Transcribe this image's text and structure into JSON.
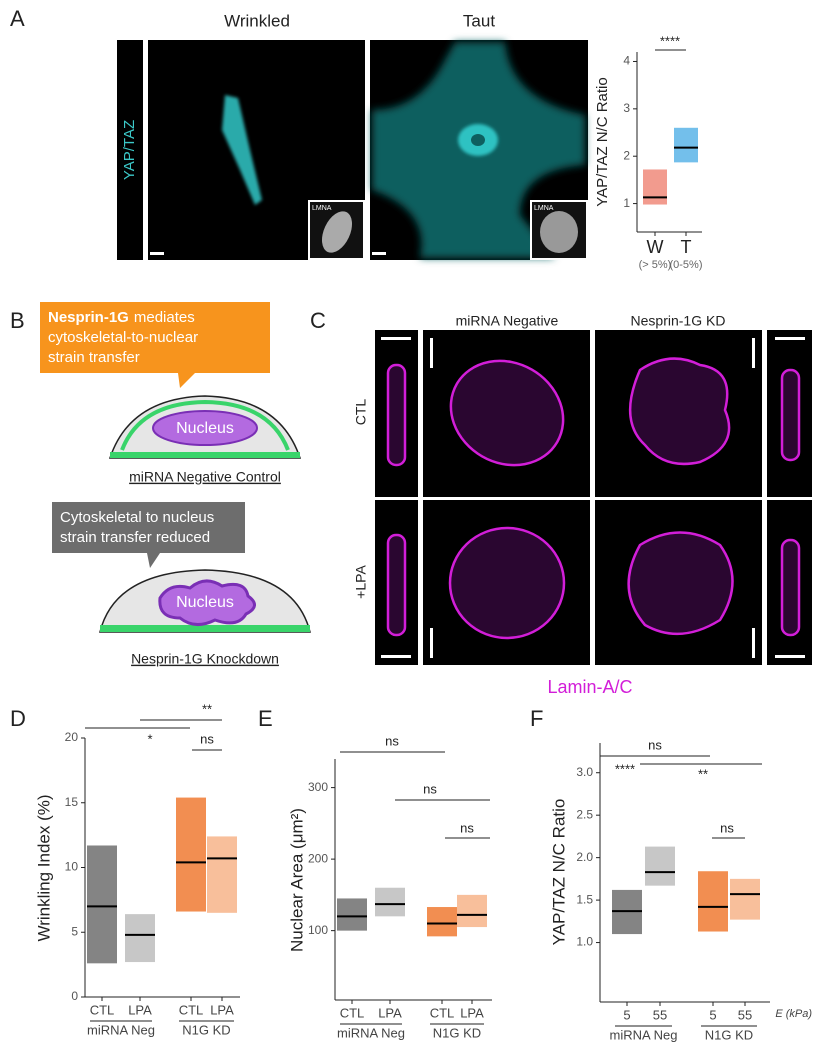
{
  "panel_a": {
    "letter": "A",
    "titles": [
      "Wrinkled",
      "Taut"
    ],
    "channel": "YAP/TAZ",
    "insets": [
      "LMNA",
      "LMNA"
    ]
  },
  "panel_b": {
    "letter": "B",
    "callout_top": {
      "bold": "Nesprin-1G",
      "lines": [
        "mediates",
        "cytoskeletal-to-nuclear",
        "strain transfer"
      ]
    },
    "cell_top": {
      "nucleus": "Nucleus",
      "caption": "miRNA Negative Control"
    },
    "callout_bottom": {
      "lines": [
        "Cytoskeletal to nucleus",
        "strain transfer reduced"
      ]
    },
    "cell_bottom": {
      "nucleus": "Nucleus",
      "caption": "Nesprin-1G Knockdown"
    }
  },
  "panel_c": {
    "letter": "C",
    "columns": [
      "miRNA Negative",
      "Nesprin-1G KD"
    ],
    "rows": [
      "CTL",
      "+LPA"
    ],
    "stain": "Lamin-A/C"
  },
  "chart_data": [
    {
      "type": "box",
      "ylabel": "YAP/TAZ N/C Ratio",
      "categories": [
        "W",
        "T"
      ],
      "sub_labels": [
        "(> 5%)",
        "(0-5%)"
      ],
      "boxes": [
        {
          "q1": 0.98,
          "median": 1.13,
          "q3": 1.72,
          "color": "#f08a7a"
        },
        {
          "q1": 1.87,
          "median": 2.18,
          "q3": 2.6,
          "color": "#5ab4e8"
        }
      ],
      "ylim": [
        0.4,
        4.2
      ],
      "yticks": [
        1,
        2,
        3,
        4
      ],
      "annotations": [
        "****"
      ]
    },
    {
      "type": "box",
      "letter": "D",
      "ylabel": "Wrinkling Index (%)",
      "categories": [
        "CTL",
        "LPA",
        "CTL",
        "LPA"
      ],
      "groups": [
        "miRNA Neg",
        "N1G KD"
      ],
      "boxes": [
        {
          "q1": 2.6,
          "median": 7.0,
          "q3": 11.7,
          "color": "#6e6e6e"
        },
        {
          "q1": 2.7,
          "median": 4.8,
          "q3": 6.4,
          "color": "#bdbdbd"
        },
        {
          "q1": 6.6,
          "median": 10.4,
          "q3": 15.4,
          "color": "#f07a32"
        },
        {
          "q1": 6.5,
          "median": 10.7,
          "q3": 12.4,
          "color": "#f7b48a"
        }
      ],
      "ylim": [
        0,
        20
      ],
      "yticks": [
        0,
        5,
        10,
        15,
        20
      ],
      "annotations": [
        "**",
        "*",
        "ns"
      ]
    },
    {
      "type": "box",
      "letter": "E",
      "ylabel": "Nuclear Area (μm²)",
      "categories": [
        "CTL",
        "LPA",
        "CTL",
        "LPA"
      ],
      "groups": [
        "miRNA Neg",
        "N1G KD"
      ],
      "boxes": [
        {
          "q1": 100,
          "median": 120,
          "q3": 145,
          "color": "#6e6e6e"
        },
        {
          "q1": 120,
          "median": 137,
          "q3": 160,
          "color": "#bdbdbd"
        },
        {
          "q1": 92,
          "median": 110,
          "q3": 133,
          "color": "#f07a32"
        },
        {
          "q1": 105,
          "median": 122,
          "q3": 150,
          "color": "#f7b48a"
        }
      ],
      "ylim": [
        3,
        340
      ],
      "yticks": [
        100,
        200,
        300
      ],
      "annotations": [
        "ns",
        "ns",
        "ns"
      ]
    },
    {
      "type": "box",
      "letter": "F",
      "ylabel": "YAP/TAZ N/C Ratio",
      "categories": [
        "5",
        "55",
        "5",
        "55"
      ],
      "groups": [
        "miRNA Neg",
        "N1G KD"
      ],
      "x_unit_label": "E (kPa)",
      "boxes": [
        {
          "q1": 1.1,
          "median": 1.37,
          "q3": 1.62,
          "color": "#6e6e6e"
        },
        {
          "q1": 1.67,
          "median": 1.83,
          "q3": 2.13,
          "color": "#bdbdbd"
        },
        {
          "q1": 1.13,
          "median": 1.42,
          "q3": 1.84,
          "color": "#f07a32"
        },
        {
          "q1": 1.27,
          "median": 1.57,
          "q3": 1.75,
          "color": "#f7b48a"
        }
      ],
      "ylim": [
        0.3,
        3.35
      ],
      "yticks": [
        {
          "value": 1,
          "label": "1.0"
        },
        {
          "value": 1.5,
          "label": "1.5"
        },
        {
          "value": 2,
          "label": "2.0"
        },
        {
          "value": 2.5,
          "label": "2.5"
        },
        {
          "value": 3,
          "label": "3.0"
        }
      ],
      "annotations": [
        "ns",
        "****",
        "**",
        "ns"
      ]
    }
  ]
}
